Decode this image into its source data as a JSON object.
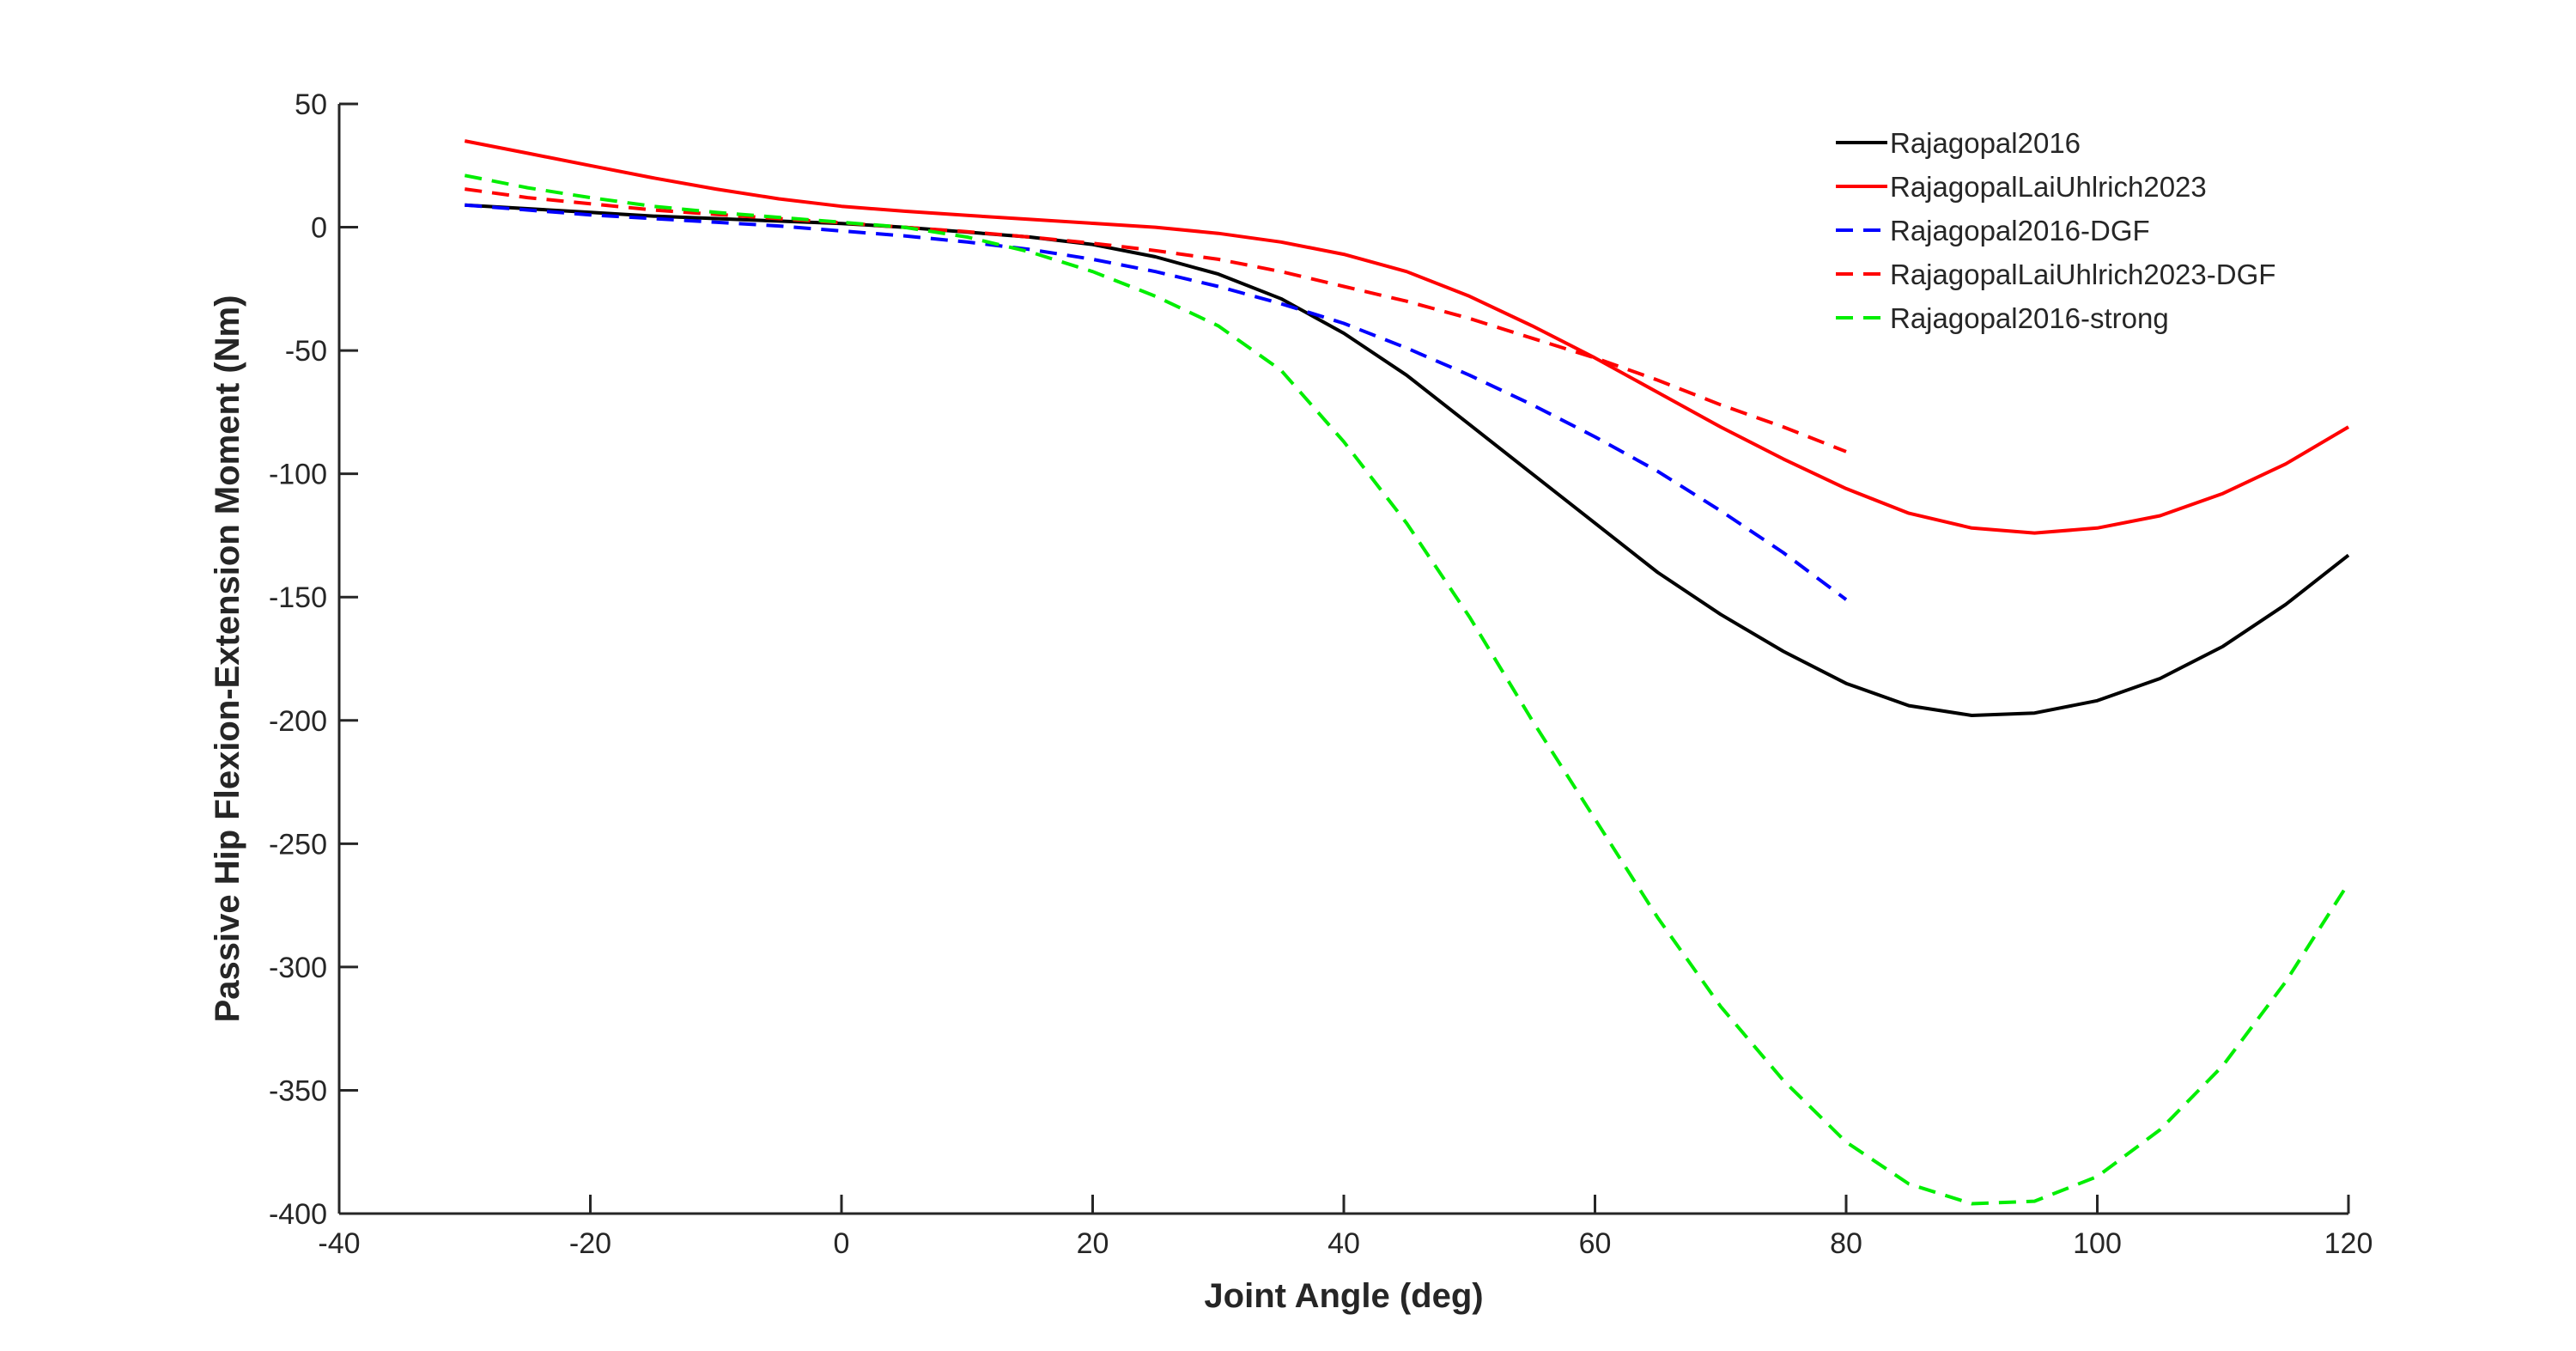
{
  "chart_data": {
    "type": "line",
    "title": "",
    "xlabel": "Joint Angle (deg)",
    "ylabel": "Passive Hip Flexion-Extension Moment (Nm)",
    "xlim": [
      -40,
      120
    ],
    "ylim": [
      -400,
      50
    ],
    "xticks": [
      -40,
      -20,
      0,
      20,
      40,
      60,
      80,
      100,
      120
    ],
    "xtick_labels": [
      "-40",
      "-20",
      "0",
      "20",
      "40",
      "60",
      "80",
      "100",
      "120"
    ],
    "yticks": [
      50,
      0,
      -50,
      -100,
      -150,
      -200,
      -250,
      -300,
      -350,
      -400
    ],
    "ytick_labels": [
      "50",
      "0",
      "-50",
      "-100",
      "-150",
      "-200",
      "-250",
      "-300",
      "-350",
      "-400"
    ],
    "grid": false,
    "legend_position": "top-right",
    "series": [
      {
        "name": "Rajagopal2016",
        "color": "#000000",
        "dash": "solid",
        "x": [
          -30,
          -25,
          -20,
          -15,
          -10,
          -5,
          0,
          5,
          10,
          15,
          20,
          25,
          30,
          35,
          40,
          45,
          50,
          55,
          60,
          65,
          70,
          75,
          80,
          85,
          90,
          95,
          100,
          105,
          110,
          115,
          120
        ],
        "y": [
          9,
          7.5,
          6,
          4.5,
          3.5,
          2.5,
          1.5,
          0,
          -2,
          -4,
          -7,
          -12,
          -19,
          -29,
          -43,
          -60,
          -80,
          -100,
          -120,
          -140,
          -157,
          -172,
          -185,
          -194,
          -198,
          -197,
          -192,
          -183,
          -170,
          -153,
          -133
        ]
      },
      {
        "name": "RajagopalLaiUhlrich2023",
        "color": "#ff0000",
        "dash": "solid",
        "x": [
          -30,
          -25,
          -20,
          -15,
          -10,
          -5,
          0,
          5,
          10,
          15,
          20,
          25,
          30,
          35,
          40,
          45,
          50,
          55,
          60,
          65,
          70,
          75,
          80,
          85,
          90,
          95,
          100,
          105,
          110,
          115,
          120
        ],
        "y": [
          35,
          30,
          25,
          20,
          15.5,
          11.5,
          8.5,
          6.5,
          4.8,
          3.2,
          1.6,
          0,
          -2.5,
          -6,
          -11,
          -18,
          -28,
          -40,
          -53,
          -67,
          -81,
          -94,
          -106,
          -116,
          -122,
          -124,
          -122,
          -117,
          -108,
          -96,
          -81
        ]
      },
      {
        "name": "Rajagopal2016-DGF",
        "color": "#0000ff",
        "dash": "dashed",
        "x": [
          -30,
          -25,
          -20,
          -15,
          -10,
          -5,
          0,
          5,
          10,
          15,
          20,
          25,
          30,
          35,
          40,
          45,
          50,
          55,
          60,
          65,
          70,
          75,
          80
        ],
        "y": [
          9,
          7,
          5,
          3.5,
          2,
          0.5,
          -1.5,
          -3.5,
          -6,
          -9,
          -13,
          -18,
          -24,
          -31,
          -39,
          -49,
          -60,
          -72,
          -85,
          -99,
          -115,
          -132,
          -151
        ]
      },
      {
        "name": "RajagopalLaiUhlrich2023-DGF",
        "color": "#ff0000",
        "dash": "dashed",
        "x": [
          -30,
          -25,
          -20,
          -15,
          -10,
          -5,
          0,
          5,
          10,
          15,
          20,
          25,
          30,
          35,
          40,
          45,
          50,
          55,
          60,
          65,
          70,
          75,
          80
        ],
        "y": [
          15.5,
          12,
          9.5,
          7,
          5.2,
          3.5,
          1.8,
          0,
          -1.8,
          -4,
          -6.5,
          -9.5,
          -13,
          -18,
          -24,
          -30,
          -37,
          -45,
          -53,
          -62,
          -72,
          -81,
          -91
        ]
      },
      {
        "name": "Rajagopal2016-strong",
        "color": "#00ee00",
        "dash": "dashed",
        "x": [
          -30,
          -25,
          -20,
          -15,
          -10,
          -5,
          0,
          5,
          10,
          15,
          20,
          25,
          30,
          35,
          40,
          45,
          50,
          55,
          60,
          65,
          70,
          75,
          80,
          85,
          90,
          95,
          100,
          105,
          110,
          115,
          120
        ],
        "y": [
          21,
          16,
          12,
          8.5,
          6,
          4,
          2,
          0,
          -4,
          -10,
          -18,
          -28,
          -40,
          -58,
          -87,
          -120,
          -158,
          -200,
          -240,
          -280,
          -316,
          -346,
          -371,
          -388,
          -396,
          -395,
          -385,
          -366,
          -340,
          -306,
          -266
        ]
      }
    ]
  }
}
